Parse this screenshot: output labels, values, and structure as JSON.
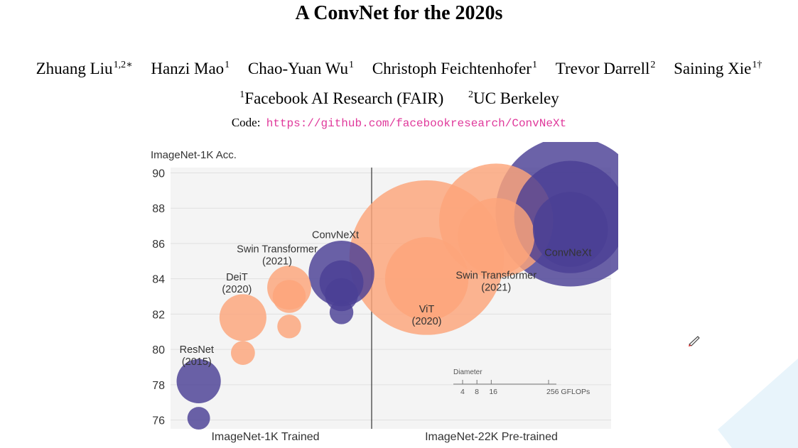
{
  "paper": {
    "title": "A ConvNet for the 2020s",
    "authors": [
      {
        "name": "Zhuang Liu",
        "sup": "1,2∗"
      },
      {
        "name": "Hanzi Mao",
        "sup": "1"
      },
      {
        "name": "Chao-Yuan Wu",
        "sup": "1"
      },
      {
        "name": "Christoph Feichtenhofer",
        "sup": "1"
      },
      {
        "name": "Trevor Darrell",
        "sup": "2"
      },
      {
        "name": "Saining Xie",
        "sup": "1†"
      }
    ],
    "affiliations": [
      {
        "sup": "1",
        "name": "Facebook AI Research (FAIR)"
      },
      {
        "sup": "2",
        "name": "UC Berkeley"
      }
    ],
    "code_label": "Code:",
    "code_url": "https://github.com/facebookresearch/ConvNeXt"
  },
  "chart_data": {
    "type": "scatter",
    "title": "",
    "ylabel": "ImageNet-1K Acc.",
    "ylim": [
      75.5,
      90.3
    ],
    "yticks": [
      76,
      78,
      80,
      82,
      84,
      86,
      88,
      90
    ],
    "grid": true,
    "panels": [
      {
        "name": "ImageNet-1K Trained",
        "xlim": [
          0,
          100
        ]
      },
      {
        "name": "ImageNet-22K Pre-trained",
        "xlim": [
          0,
          100
        ]
      }
    ],
    "colors": {
      "orange": "#fca57a",
      "purple": "#4b3f95",
      "label": "#333333"
    },
    "bubbles": [
      {
        "series": "ResNet",
        "panel": 0,
        "x": 14,
        "y": 76.1,
        "gflops": 4.1,
        "color": "purple"
      },
      {
        "series": "ResNet",
        "panel": 0,
        "x": 14,
        "y": 78.2,
        "gflops": 15.6,
        "color": "purple"
      },
      {
        "series": "DeiT",
        "panel": 0,
        "x": 36,
        "y": 79.8,
        "gflops": 4.6,
        "color": "orange"
      },
      {
        "series": "DeiT",
        "panel": 0,
        "x": 36,
        "y": 81.8,
        "gflops": 17.6,
        "color": "orange"
      },
      {
        "series": "Swin Transformer",
        "panel": 0,
        "x": 59,
        "y": 81.3,
        "gflops": 4.5,
        "color": "orange"
      },
      {
        "series": "Swin Transformer",
        "panel": 0,
        "x": 59,
        "y": 83.0,
        "gflops": 8.7,
        "color": "orange"
      },
      {
        "series": "Swin Transformer",
        "panel": 0,
        "x": 59,
        "y": 83.5,
        "gflops": 15.4,
        "color": "orange"
      },
      {
        "series": "ConvNeXt",
        "panel": 0,
        "x": 85,
        "y": 82.1,
        "gflops": 4.5,
        "color": "purple"
      },
      {
        "series": "ConvNeXt",
        "panel": 0,
        "x": 85,
        "y": 83.1,
        "gflops": 8.7,
        "color": "purple"
      },
      {
        "series": "ConvNeXt",
        "panel": 0,
        "x": 85,
        "y": 83.8,
        "gflops": 15.4,
        "color": "purple"
      },
      {
        "series": "ConvNeXt",
        "panel": 0,
        "x": 85,
        "y": 84.3,
        "gflops": 34.4,
        "color": "purple"
      },
      {
        "series": "ViT",
        "panel": 1,
        "x": 23,
        "y": 84.0,
        "gflops": 55.5,
        "color": "orange"
      },
      {
        "series": "ViT",
        "panel": 1,
        "x": 23,
        "y": 85.2,
        "gflops": 191.1,
        "color": "orange"
      },
      {
        "series": "Swin Transformer",
        "panel": 1,
        "x": 52,
        "y": 86.4,
        "gflops": 47.0,
        "color": "orange"
      },
      {
        "series": "Swin Transformer",
        "panel": 1,
        "x": 52,
        "y": 87.3,
        "gflops": 103.9,
        "color": "orange"
      },
      {
        "series": "ConvNeXt",
        "panel": 1,
        "x": 83,
        "y": 86.8,
        "gflops": 45.0,
        "color": "purple"
      },
      {
        "series": "ConvNeXt",
        "panel": 1,
        "x": 83,
        "y": 87.5,
        "gflops": 101.0,
        "color": "purple"
      },
      {
        "series": "ConvNeXt",
        "panel": 1,
        "x": 83,
        "y": 87.8,
        "gflops": 179.0,
        "color": "purple"
      }
    ],
    "annotations": [
      {
        "id": "resnet",
        "panel": 0,
        "x": 13,
        "y": 79.8,
        "lines": [
          "ResNet",
          "(2015)"
        ]
      },
      {
        "id": "deit",
        "panel": 0,
        "x": 33,
        "y": 83.9,
        "lines": [
          "DeiT",
          "(2020)"
        ]
      },
      {
        "id": "swin1k",
        "panel": 0,
        "x": 53,
        "y": 85.5,
        "lines": [
          "Swin Transformer",
          "(2021)"
        ]
      },
      {
        "id": "convnext1k",
        "panel": 0,
        "x": 82,
        "y": 86.3,
        "lines": [
          "ConvNeXt"
        ]
      },
      {
        "id": "vit",
        "panel": 1,
        "x": 23,
        "y": 82.1,
        "lines": [
          "ViT",
          "(2020)"
        ]
      },
      {
        "id": "swin22k",
        "panel": 1,
        "x": 52,
        "y": 84.0,
        "lines": [
          "Swin Transformer",
          "(2021)"
        ]
      },
      {
        "id": "convnext22k",
        "panel": 1,
        "x": 82,
        "y": 85.3,
        "lines": [
          "ConvNeXt"
        ]
      }
    ],
    "size_legend": {
      "title": "Diameter",
      "ticks": [
        4,
        8,
        16,
        256
      ],
      "unit": "GFLOPs",
      "tick_labels": [
        "4",
        "8",
        "16",
        "256 GFLOPs"
      ]
    }
  }
}
